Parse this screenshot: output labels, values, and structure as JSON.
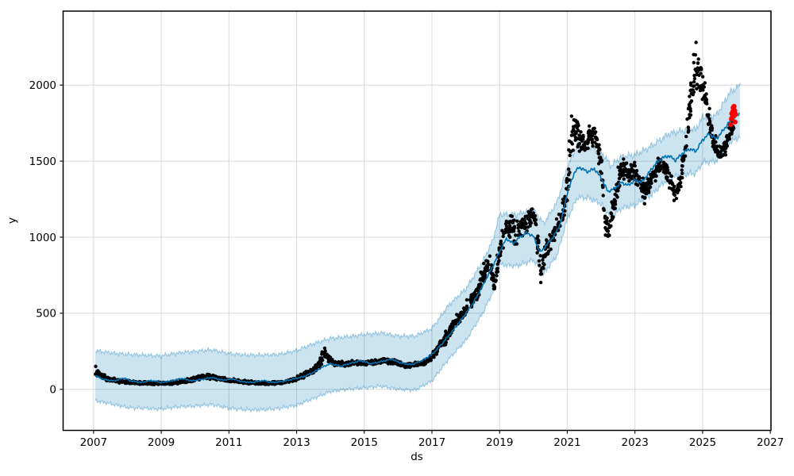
{
  "figure": {
    "kind": "prophet-forecast-plot",
    "background": "#ffffff"
  },
  "colors": {
    "observed": "#000000",
    "forecast_line": "#0072b2",
    "uncertainty_fill": "rgba(0,114,178,0.2)",
    "uncertainty_edge": "rgba(0,114,178,0.32)",
    "highlight": "#ff0000",
    "grid": "#d8d8d8",
    "spine": "#000000",
    "tick_label": "#000000"
  },
  "chart_data": {
    "type": "line",
    "subtype": "forecast_with_uncertainty_band_and_scatter",
    "title": "",
    "xlabel": "ds",
    "ylabel": "y",
    "xlim": [
      2006.1,
      2027.02
    ],
    "ylim": [
      -270,
      2486
    ],
    "xticks": [
      2007,
      2009,
      2011,
      2013,
      2015,
      2017,
      2019,
      2021,
      2023,
      2025,
      2027
    ],
    "yticks": [
      0,
      500,
      1000,
      1500,
      2000
    ],
    "grid": true,
    "legend_position": "none",
    "series": [
      {
        "name": "uncertainty_interval",
        "type": "band",
        "point_format": "[year, lower, upper]",
        "points": [
          [
            2007.05,
            -75,
            255
          ],
          [
            2007.5,
            -95,
            240
          ],
          [
            2008.0,
            -120,
            230
          ],
          [
            2008.5,
            -125,
            225
          ],
          [
            2009.0,
            -130,
            220
          ],
          [
            2009.5,
            -115,
            240
          ],
          [
            2010.0,
            -110,
            250
          ],
          [
            2010.5,
            -100,
            260
          ],
          [
            2011.0,
            -125,
            235
          ],
          [
            2011.5,
            -135,
            225
          ],
          [
            2012.0,
            -135,
            225
          ],
          [
            2012.5,
            -125,
            230
          ],
          [
            2013.0,
            -105,
            255
          ],
          [
            2013.5,
            -60,
            300
          ],
          [
            2014.0,
            -15,
            335
          ],
          [
            2014.5,
            0,
            345
          ],
          [
            2015.0,
            10,
            360
          ],
          [
            2015.5,
            20,
            370
          ],
          [
            2016.0,
            0,
            350
          ],
          [
            2016.5,
            -5,
            350
          ],
          [
            2017.0,
            55,
            400
          ],
          [
            2017.5,
            200,
            555
          ],
          [
            2018.0,
            320,
            660
          ],
          [
            2018.5,
            500,
            840
          ],
          [
            2018.8,
            640,
            980
          ],
          [
            2019.0,
            820,
            1150
          ],
          [
            2019.5,
            810,
            1150
          ],
          [
            2020.0,
            850,
            1180
          ],
          [
            2020.3,
            760,
            1090
          ],
          [
            2020.7,
            880,
            1230
          ],
          [
            2021.0,
            1120,
            1460
          ],
          [
            2021.3,
            1260,
            1610
          ],
          [
            2021.6,
            1260,
            1600
          ],
          [
            2022.0,
            1220,
            1560
          ],
          [
            2022.3,
            1130,
            1470
          ],
          [
            2022.6,
            1190,
            1530
          ],
          [
            2023.0,
            1210,
            1540
          ],
          [
            2023.5,
            1280,
            1600
          ],
          [
            2024.0,
            1390,
            1680
          ],
          [
            2024.4,
            1410,
            1700
          ],
          [
            2024.8,
            1420,
            1710
          ],
          [
            2025.0,
            1490,
            1790
          ],
          [
            2025.4,
            1500,
            1800
          ],
          [
            2025.8,
            1620,
            1950
          ],
          [
            2026.1,
            1660,
            1995
          ]
        ]
      },
      {
        "name": "observed",
        "type": "scatter",
        "marker_radius": 2.2,
        "point_format": "[year, value, spread]",
        "keypoints": [
          [
            2007.05,
            115,
            45
          ],
          [
            2007.2,
            90,
            30
          ],
          [
            2007.4,
            70,
            20
          ],
          [
            2007.7,
            55,
            15
          ],
          [
            2008.0,
            48,
            12
          ],
          [
            2008.5,
            42,
            10
          ],
          [
            2009.0,
            38,
            10
          ],
          [
            2009.5,
            45,
            12
          ],
          [
            2009.8,
            60,
            15
          ],
          [
            2010.1,
            75,
            18
          ],
          [
            2010.4,
            85,
            18
          ],
          [
            2010.7,
            70,
            15
          ],
          [
            2011.0,
            60,
            14
          ],
          [
            2011.4,
            48,
            12
          ],
          [
            2011.8,
            42,
            10
          ],
          [
            2012.2,
            40,
            10
          ],
          [
            2012.6,
            45,
            10
          ],
          [
            2013.0,
            70,
            18
          ],
          [
            2013.4,
            110,
            25
          ],
          [
            2013.65,
            150,
            35
          ],
          [
            2013.8,
            240,
            45
          ],
          [
            2013.95,
            200,
            28
          ],
          [
            2014.1,
            170,
            20
          ],
          [
            2014.4,
            165,
            18
          ],
          [
            2014.7,
            175,
            18
          ],
          [
            2015.0,
            170,
            18
          ],
          [
            2015.3,
            180,
            18
          ],
          [
            2015.6,
            190,
            18
          ],
          [
            2015.9,
            180,
            18
          ],
          [
            2016.2,
            155,
            18
          ],
          [
            2016.5,
            165,
            18
          ],
          [
            2016.8,
            175,
            18
          ],
          [
            2017.0,
            215,
            25
          ],
          [
            2017.2,
            280,
            35
          ],
          [
            2017.45,
            350,
            45
          ],
          [
            2017.7,
            440,
            50
          ],
          [
            2017.9,
            490,
            50
          ],
          [
            2018.1,
            560,
            60
          ],
          [
            2018.35,
            640,
            70
          ],
          [
            2018.55,
            780,
            85
          ],
          [
            2018.7,
            840,
            60
          ],
          [
            2018.85,
            680,
            70
          ],
          [
            2019.0,
            900,
            90
          ],
          [
            2019.15,
            1030,
            90
          ],
          [
            2019.3,
            1080,
            110
          ],
          [
            2019.5,
            1020,
            100
          ],
          [
            2019.7,
            1080,
            90
          ],
          [
            2019.9,
            1120,
            80
          ],
          [
            2020.05,
            1130,
            80
          ],
          [
            2020.2,
            800,
            130
          ],
          [
            2020.35,
            900,
            90
          ],
          [
            2020.55,
            1000,
            80
          ],
          [
            2020.75,
            1080,
            70
          ],
          [
            2020.95,
            1230,
            80
          ],
          [
            2021.1,
            1640,
            200
          ],
          [
            2021.25,
            1720,
            130
          ],
          [
            2021.4,
            1600,
            120
          ],
          [
            2021.55,
            1620,
            90
          ],
          [
            2021.7,
            1680,
            80
          ],
          [
            2021.85,
            1650,
            80
          ],
          [
            2022.0,
            1480,
            110
          ],
          [
            2022.1,
            1180,
            160
          ],
          [
            2022.2,
            1010,
            70
          ],
          [
            2022.35,
            1180,
            90
          ],
          [
            2022.5,
            1370,
            90
          ],
          [
            2022.65,
            1470,
            80
          ],
          [
            2022.8,
            1420,
            90
          ],
          [
            2022.95,
            1440,
            70
          ],
          [
            2023.1,
            1390,
            80
          ],
          [
            2023.3,
            1290,
            70
          ],
          [
            2023.5,
            1380,
            70
          ],
          [
            2023.7,
            1470,
            70
          ],
          [
            2023.9,
            1450,
            70
          ],
          [
            2024.05,
            1350,
            80
          ],
          [
            2024.2,
            1270,
            60
          ],
          [
            2024.35,
            1400,
            90
          ],
          [
            2024.5,
            1600,
            110
          ],
          [
            2024.65,
            1900,
            160
          ],
          [
            2024.8,
            2130,
            190
          ],
          [
            2024.95,
            2060,
            150
          ],
          [
            2025.05,
            1950,
            120
          ],
          [
            2025.15,
            1800,
            100
          ],
          [
            2025.3,
            1650,
            90
          ],
          [
            2025.45,
            1560,
            70
          ],
          [
            2025.6,
            1550,
            70
          ],
          [
            2025.75,
            1650,
            80
          ],
          [
            2025.97,
            1780,
            70
          ]
        ]
      },
      {
        "name": "forecast_yhat",
        "type": "line",
        "line_width": 1.6,
        "point_format": "[year, value]",
        "points": [
          [
            2007.05,
            90
          ],
          [
            2007.3,
            65
          ],
          [
            2007.6,
            55
          ],
          [
            2007.9,
            75
          ],
          [
            2008.1,
            55
          ],
          [
            2008.4,
            45
          ],
          [
            2008.7,
            58
          ],
          [
            2009.0,
            45
          ],
          [
            2009.3,
            55
          ],
          [
            2009.6,
            72
          ],
          [
            2009.9,
            55
          ],
          [
            2010.2,
            65
          ],
          [
            2010.5,
            78
          ],
          [
            2010.8,
            60
          ],
          [
            2011.1,
            68
          ],
          [
            2011.4,
            50
          ],
          [
            2011.7,
            45
          ],
          [
            2012.0,
            58
          ],
          [
            2012.3,
            45
          ],
          [
            2012.6,
            52
          ],
          [
            2012.9,
            68
          ],
          [
            2013.2,
            82
          ],
          [
            2013.5,
            112
          ],
          [
            2013.8,
            150
          ],
          [
            2014.0,
            168
          ],
          [
            2014.3,
            152
          ],
          [
            2014.6,
            172
          ],
          [
            2014.9,
            188
          ],
          [
            2015.2,
            168
          ],
          [
            2015.5,
            182
          ],
          [
            2015.8,
            198
          ],
          [
            2016.1,
            172
          ],
          [
            2016.4,
            162
          ],
          [
            2016.7,
            188
          ],
          [
            2017.0,
            228
          ],
          [
            2017.3,
            300
          ],
          [
            2017.6,
            380
          ],
          [
            2017.9,
            468
          ],
          [
            2018.2,
            560
          ],
          [
            2018.5,
            680
          ],
          [
            2018.8,
            810
          ],
          [
            2019.0,
            905
          ],
          [
            2019.2,
            990
          ],
          [
            2019.4,
            958
          ],
          [
            2019.6,
            1000
          ],
          [
            2019.8,
            1030
          ],
          [
            2020.0,
            1005
          ],
          [
            2020.2,
            900
          ],
          [
            2020.4,
            950
          ],
          [
            2020.6,
            1005
          ],
          [
            2020.8,
            1090
          ],
          [
            2021.0,
            1290
          ],
          [
            2021.2,
            1420
          ],
          [
            2021.35,
            1460
          ],
          [
            2021.6,
            1430
          ],
          [
            2021.8,
            1450
          ],
          [
            2022.0,
            1390
          ],
          [
            2022.2,
            1300
          ],
          [
            2022.4,
            1320
          ],
          [
            2022.6,
            1360
          ],
          [
            2022.8,
            1340
          ],
          [
            2023.0,
            1375
          ],
          [
            2023.2,
            1360
          ],
          [
            2023.4,
            1420
          ],
          [
            2023.6,
            1480
          ],
          [
            2023.8,
            1520
          ],
          [
            2024.0,
            1535
          ],
          [
            2024.2,
            1505
          ],
          [
            2024.4,
            1550
          ],
          [
            2024.6,
            1580
          ],
          [
            2024.8,
            1565
          ],
          [
            2025.0,
            1640
          ],
          [
            2025.2,
            1680
          ],
          [
            2025.4,
            1645
          ],
          [
            2025.6,
            1700
          ],
          [
            2025.8,
            1760
          ],
          [
            2025.95,
            1790
          ],
          [
            2026.1,
            1812
          ]
        ]
      },
      {
        "name": "recent_observed_highlight",
        "type": "scatter",
        "marker_radius": 3.1,
        "point_format": "[year, value]",
        "points": [
          [
            2025.83,
            1740
          ],
          [
            2025.85,
            1778
          ],
          [
            2025.86,
            1812
          ],
          [
            2025.88,
            1790
          ],
          [
            2025.89,
            1826
          ],
          [
            2025.9,
            1851
          ],
          [
            2025.92,
            1838
          ],
          [
            2025.93,
            1860
          ],
          [
            2025.94,
            1800
          ],
          [
            2025.95,
            1832
          ],
          [
            2025.96,
            1757
          ],
          [
            2025.97,
            1808
          ]
        ]
      }
    ]
  }
}
